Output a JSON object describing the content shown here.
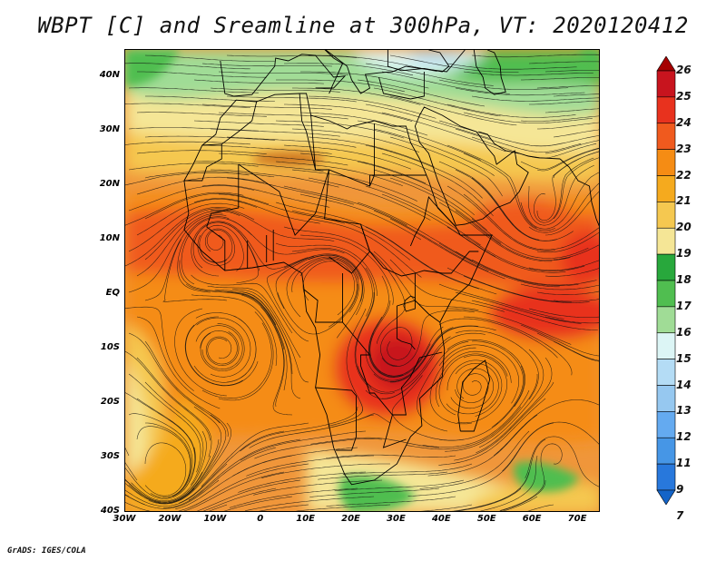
{
  "title": "WBPT [C] and Sreamline at 300hPa, VT: 2020120412",
  "credit": "GrADS: IGES/COLA",
  "map": {
    "lat_labels": [
      "40N",
      "30N",
      "20N",
      "10N",
      "EQ",
      "10S",
      "20S",
      "30S",
      "40S"
    ],
    "lat_values": [
      40,
      30,
      20,
      10,
      0,
      -10,
      -20,
      -30,
      -40
    ],
    "lon_labels": [
      "30W",
      "20W",
      "10W",
      "0",
      "10E",
      "20E",
      "30E",
      "40E",
      "50E",
      "60E",
      "70E"
    ],
    "lon_values": [
      -30,
      -20,
      -10,
      0,
      10,
      20,
      30,
      40,
      50,
      60,
      70
    ],
    "lat_range": [
      -40,
      45
    ],
    "lon_range": [
      -30,
      75
    ]
  },
  "colorbar": {
    "labels": [
      "26",
      "25",
      "24",
      "23",
      "22",
      "21",
      "20",
      "19",
      "18",
      "17",
      "16",
      "15",
      "14",
      "13",
      "12",
      "11",
      "9",
      "7"
    ],
    "colors": [
      "#a50000",
      "#c8141e",
      "#e8321e",
      "#f05a1e",
      "#f58c14",
      "#f5aa1e",
      "#f5c850",
      "#f5e696",
      "#28a83c",
      "#50be50",
      "#a0dc96",
      "#dcf5f5",
      "#b4dcf5",
      "#96c8f0",
      "#64aaf0",
      "#4696e6",
      "#2878dc",
      "#1464c8"
    ]
  }
}
